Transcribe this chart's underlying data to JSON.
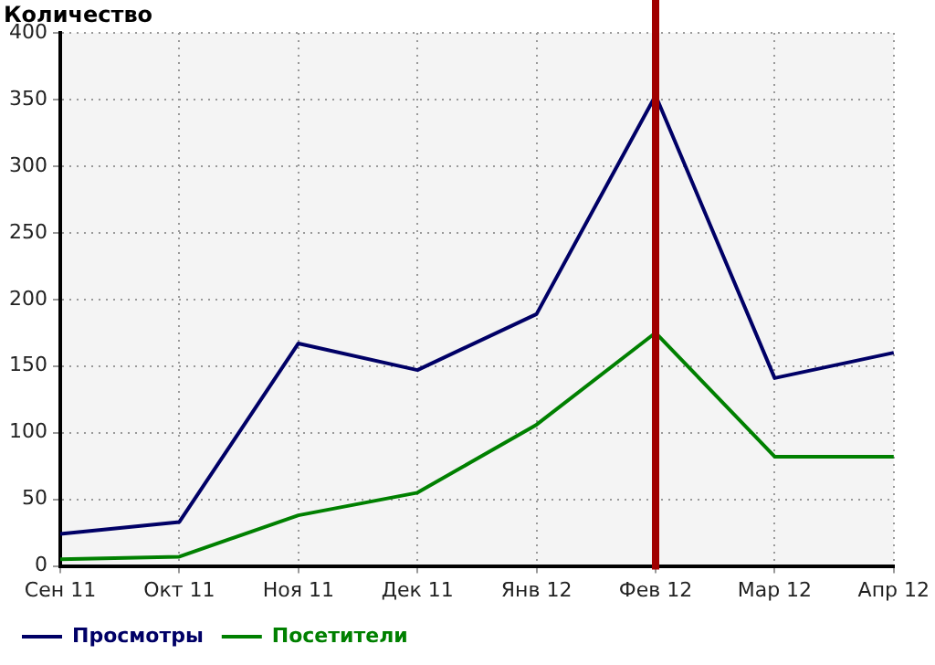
{
  "chart_data": {
    "type": "line",
    "ylabel": "Количество",
    "categories": [
      "Сен 11",
      "Окт 11",
      "Ноя 11",
      "Дек 11",
      "Янв 12",
      "Фев 12",
      "Мар 12",
      "Апр 12"
    ],
    "series": [
      {
        "name": "Просмотры",
        "color": "#000066",
        "values": [
          24,
          33,
          167,
          147,
          189,
          353,
          141,
          160
        ]
      },
      {
        "name": "Посетители",
        "color": "#008000",
        "values": [
          5,
          7,
          38,
          55,
          106,
          175,
          82,
          82
        ]
      }
    ],
    "ylim": [
      0,
      400
    ],
    "yticks": [
      0,
      50,
      100,
      150,
      200,
      250,
      300,
      350,
      400
    ],
    "grid": true,
    "legend": "bottom left",
    "marker": "none",
    "line_style": "solid",
    "ref_lines": [
      {
        "axis": "x",
        "value": "Фев 12",
        "color": "#a00000"
      }
    ]
  }
}
